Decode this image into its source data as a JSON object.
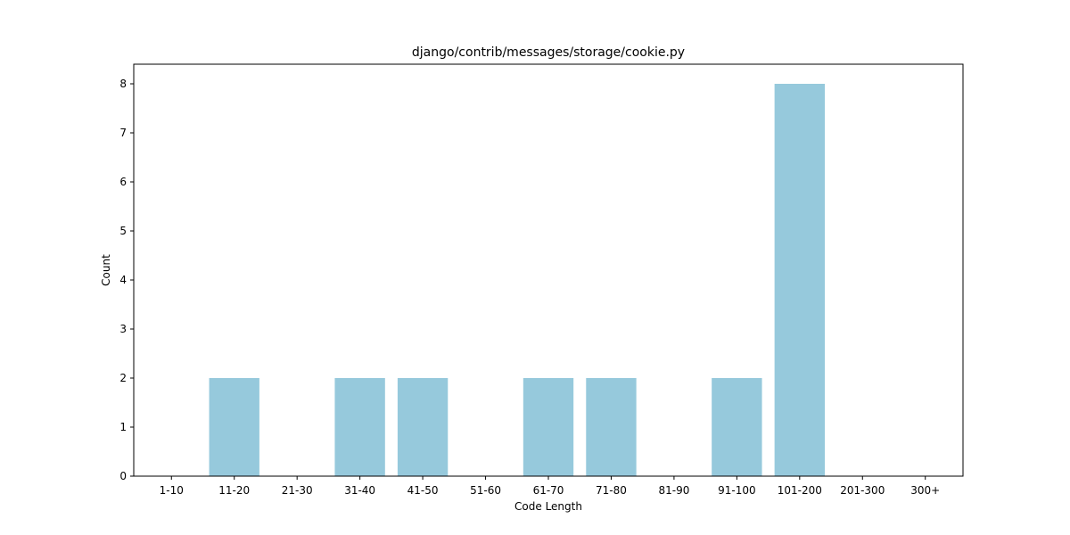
{
  "chart_data": {
    "type": "bar",
    "title": "django/contrib/messages/storage/cookie.py",
    "xlabel": "Code Length",
    "ylabel": "Count",
    "categories": [
      "1-10",
      "11-20",
      "21-30",
      "31-40",
      "41-50",
      "51-60",
      "61-70",
      "71-80",
      "81-90",
      "91-100",
      "101-200",
      "201-300",
      "300+"
    ],
    "values": [
      0,
      2,
      0,
      2,
      2,
      0,
      2,
      2,
      0,
      2,
      8,
      0,
      0
    ],
    "ylim": [
      0,
      8.4
    ],
    "yticks": [
      0,
      1,
      2,
      3,
      4,
      5,
      6,
      7,
      8
    ],
    "grid": false,
    "legend": "none",
    "bar_color": "#96c9dc"
  }
}
